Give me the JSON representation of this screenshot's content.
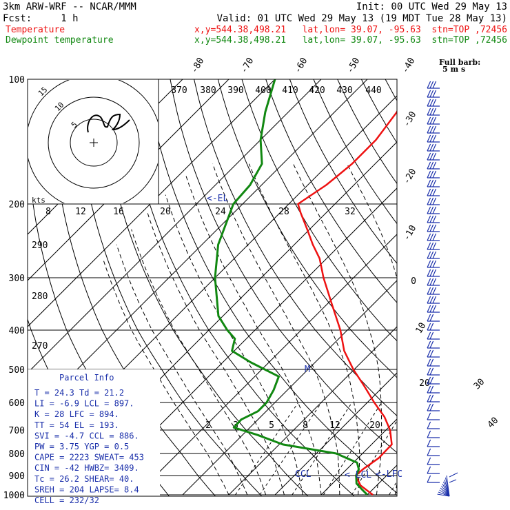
{
  "header": {
    "model": "3km ARW-WRF -- NCAR/MMM",
    "init": "Init: 00 UTC Wed 29 May 13",
    "fcst": "Fcst:     1 h",
    "valid": "Valid: 01 UTC Wed 29 May 13 (19 MDT Tue 28 May 13)",
    "temp_label": "Temperature",
    "dew_label": "Dewpoint temperature",
    "temp_info": "x,y=544.38,498.21   lat,lon= 39.07, -95.63  stn=TOP ,72456",
    "dew_info": "x,y=544.38,498.21   lat,lon= 39.07, -95.63  stn=TOP ,72456",
    "barb_legend_1": "Full barb:",
    "barb_legend_2": "5 m s"
  },
  "colors": {
    "temperature": "#ee1111",
    "dewpoint": "#118811",
    "parcel_text": "#1a2faa",
    "grid": "#000000"
  },
  "chart_data": {
    "type": "line",
    "pressure_levels": [
      100,
      200,
      300,
      400,
      500,
      600,
      700,
      800,
      900,
      1000
    ],
    "isotherm_labels": [
      "-80",
      "-70",
      "-60",
      "-50",
      "-40",
      "-30",
      "-20",
      "-10",
      "0",
      "10",
      "20",
      "30",
      "40"
    ],
    "theta_labels": [
      "370",
      "380",
      "390",
      "400",
      "410",
      "420",
      "430",
      "440"
    ],
    "theta_side_labels": [
      "290",
      "280",
      "270"
    ],
    "mixing_ratio_labels": [
      "2",
      "3",
      "5",
      "8",
      "12",
      "20"
    ],
    "hodograph": {
      "speed_axis_label": "kts",
      "speed_axis_ticks": [
        "8",
        "12",
        "16",
        "20",
        "24",
        "28",
        "32"
      ],
      "ring_labels": [
        "5",
        "10",
        "15"
      ]
    },
    "level_markers": {
      "el": "<-EL",
      "ccl": "CCL",
      "lcl": "< LCL",
      "lfc": "<-LFC",
      "m": "M"
    },
    "series": [
      {
        "name": "Temperature",
        "color": "#ee1111",
        "points": [
          [
            1000,
            21.2
          ],
          [
            950,
            16.5
          ],
          [
            900,
            13.3
          ],
          [
            870,
            13.5
          ],
          [
            820,
            14.5
          ],
          [
            760,
            14.4
          ],
          [
            700,
            10.9
          ],
          [
            650,
            6.8
          ],
          [
            600,
            1.5
          ],
          [
            550,
            -4.0
          ],
          [
            500,
            -10.2
          ],
          [
            450,
            -16.2
          ],
          [
            400,
            -21.5
          ],
          [
            350,
            -28.5
          ],
          [
            300,
            -36.5
          ],
          [
            270,
            -41.5
          ],
          [
            250,
            -46.0
          ],
          [
            230,
            -50.5
          ],
          [
            210,
            -55.5
          ],
          [
            200,
            -58.0
          ],
          [
            180,
            -56.0
          ],
          [
            170,
            -55.5
          ],
          [
            160,
            -55.0
          ],
          [
            140,
            -55.0
          ],
          [
            120,
            -56.5
          ],
          [
            100,
            -60.0
          ]
        ]
      },
      {
        "name": "Dewpoint temperature",
        "color": "#118811",
        "points": [
          [
            1000,
            20.0
          ],
          [
            970,
            17.6
          ],
          [
            940,
            15.2
          ],
          [
            900,
            13.4
          ],
          [
            870,
            12.6
          ],
          [
            840,
            10.8
          ],
          [
            800,
            4.3
          ],
          [
            760,
            -9.2
          ],
          [
            720,
            -16.7
          ],
          [
            690,
            -23.5
          ],
          [
            660,
            -23.6
          ],
          [
            630,
            -21.8
          ],
          [
            600,
            -21.8
          ],
          [
            560,
            -23.0
          ],
          [
            520,
            -24.8
          ],
          [
            480,
            -34.0
          ],
          [
            450,
            -40.5
          ],
          [
            420,
            -42.5
          ],
          [
            400,
            -46.0
          ],
          [
            370,
            -51.0
          ],
          [
            300,
            -60.0
          ],
          [
            250,
            -66.5
          ],
          [
            200,
            -72.0
          ],
          [
            180,
            -72.5
          ],
          [
            160,
            -74.5
          ],
          [
            140,
            -80.0
          ],
          [
            120,
            -85.0
          ],
          [
            100,
            -90.0
          ]
        ]
      }
    ],
    "ylim": [
      1000,
      100
    ]
  },
  "parcel_info": {
    "title": "Parcel Info",
    "rows": [
      "T   =    24.3  Td =  21.2",
      "LI  =    -6.9  LCL =  897.",
      "K   =      28  LFC =  894.",
      "TT  =      54  EL  =  193.",
      "SVI =    -4.7  CCL =  886.",
      "PW  =    3.75  YGP =   0.5",
      "CAPE =   2223  SWEAT=  453",
      "CIN  =    -42  HWBZ= 3409.",
      "Tc  =    26.2  SHEAR=  40.",
      "SREH =    204  LAPSE=  8.4",
      "CELL =  232/32"
    ]
  }
}
